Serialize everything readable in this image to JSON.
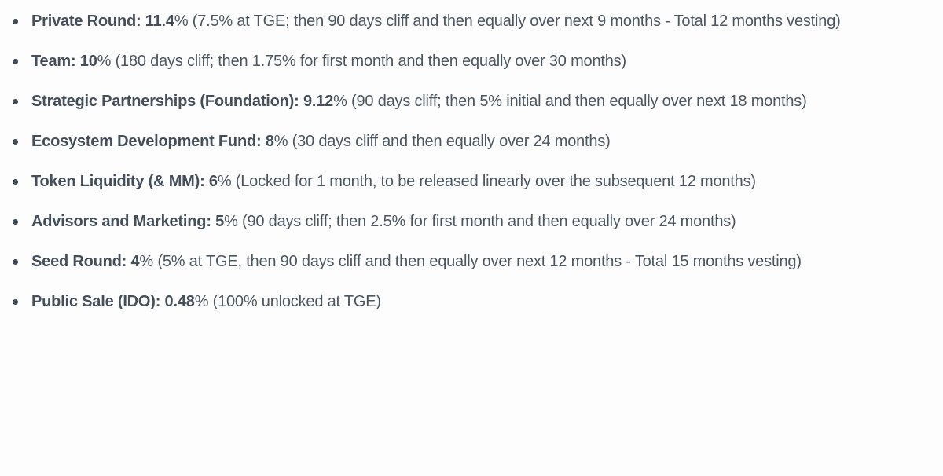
{
  "page": {
    "background_color": "#fdfdfd",
    "text_color": "#4b5663",
    "bold_text_color": "#454f5c",
    "bullet_color": "#414c58",
    "bullet_icon": "disc"
  },
  "list": {
    "items": [
      {
        "label": "Private Round: 11.4",
        "detail": "% (7.5% at TGE; then 90 days cliff and then equally over next 9 months - Total 12 months vesting)"
      },
      {
        "label": "Team: 10",
        "detail": "% (180 days cliff; then 1.75% for first month and then equally over 30 months)"
      },
      {
        "label": "Strategic Partnerships (Foundation): 9.12",
        "detail": "% (90 days cliff; then 5% initial and then equally over next 18 months)"
      },
      {
        "label": "Ecosystem Development Fund: 8",
        "detail": "% (30 days cliff and then equally over 24 months)"
      },
      {
        "label": "Token Liquidity (& MM): 6",
        "detail": "% (Locked for 1 month, to be released linearly over the subsequent 12 months)"
      },
      {
        "label": "Advisors and Marketing: 5",
        "detail": "% (90 days cliff; then 2.5% for first month and then equally over 24 months)"
      },
      {
        "label": "Seed Round: 4",
        "detail": "% (5% at TGE, then 90 days cliff and then equally over next 12 months - Total 15 months vesting)"
      },
      {
        "label": "Public Sale (IDO): 0.48",
        "detail": "% (100% unlocked at TGE)"
      }
    ]
  }
}
